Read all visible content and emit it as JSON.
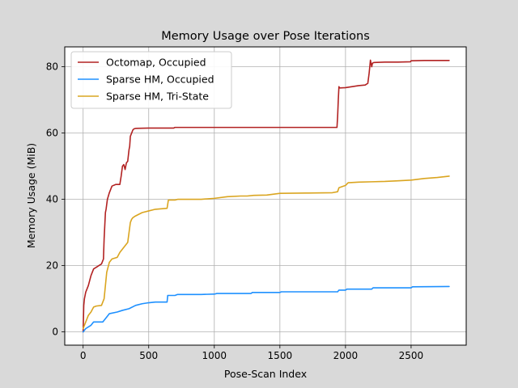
{
  "chart_data": {
    "type": "line",
    "title": "Memory Usage over Pose Iterations",
    "xlabel": "Pose-Scan Index",
    "ylabel": "Memory Usage (MiB)",
    "xlim": [
      -140,
      2920
    ],
    "ylim": [
      -4,
      86
    ],
    "xticks": [
      0,
      500,
      1000,
      1500,
      2000,
      2500
    ],
    "yticks": [
      0,
      20,
      40,
      60,
      80
    ],
    "grid": true,
    "legend": "top-left",
    "series": [
      {
        "name": "Octomap, Occupied",
        "color": "#b22222",
        "x": [
          0,
          5,
          10,
          20,
          40,
          60,
          80,
          100,
          120,
          140,
          155,
          160,
          170,
          175,
          185,
          200,
          220,
          250,
          280,
          290,
          300,
          310,
          320,
          330,
          340,
          350,
          355,
          360,
          370,
          380,
          390,
          400,
          500,
          600,
          690,
          700,
          800,
          1000,
          1200,
          1500,
          1800,
          1935,
          1940,
          1945,
          1950,
          1955,
          2000,
          2050,
          2100,
          2150,
          2170,
          2180,
          2190,
          2200,
          2205,
          2210,
          2220,
          2300,
          2400,
          2495,
          2500,
          2600,
          2700,
          2790
        ],
        "y": [
          0,
          8,
          10,
          12,
          14,
          17,
          19,
          19.5,
          20,
          20.5,
          22,
          28,
          36,
          37,
          40,
          42,
          44,
          44.5,
          44.5,
          47,
          50,
          50.5,
          49,
          51,
          51.5,
          55,
          56,
          59,
          60,
          61,
          61.3,
          61.4,
          61.5,
          61.5,
          61.5,
          61.7,
          61.7,
          61.7,
          61.7,
          61.7,
          61.7,
          61.7,
          65,
          70,
          74,
          73.6,
          73.7,
          74,
          74.3,
          74.5,
          75,
          78,
          82,
          80,
          81,
          81.2,
          81.3,
          81.4,
          81.4,
          81.5,
          81.8,
          81.9,
          81.9,
          81.9
        ]
      },
      {
        "name": "Sparse HM, Occupied",
        "color": "#1e90ff",
        "x": [
          0,
          20,
          60,
          80,
          100,
          150,
          170,
          190,
          200,
          260,
          300,
          350,
          400,
          450,
          500,
          550,
          640,
          645,
          700,
          720,
          900,
          1000,
          1020,
          1280,
          1290,
          1500,
          1510,
          1940,
          1950,
          2000,
          2010,
          2200,
          2210,
          2500,
          2510,
          2790
        ],
        "y": [
          0,
          1,
          2,
          3,
          3,
          3,
          4,
          5,
          5.5,
          6,
          6.5,
          7,
          8,
          8.5,
          8.8,
          9,
          9,
          11,
          11,
          11.3,
          11.3,
          11.4,
          11.6,
          11.6,
          11.9,
          11.9,
          12.1,
          12.1,
          12.6,
          12.6,
          12.9,
          12.9,
          13.3,
          13.3,
          13.6,
          13.7
        ]
      },
      {
        "name": "Sparse HM, Tri-State",
        "color": "#daa520",
        "x": [
          0,
          20,
          40,
          60,
          80,
          100,
          140,
          160,
          170,
          180,
          200,
          220,
          260,
          280,
          300,
          340,
          360,
          370,
          380,
          400,
          450,
          500,
          550,
          640,
          650,
          700,
          720,
          900,
          1000,
          1100,
          1200,
          1250,
          1300,
          1400,
          1500,
          1700,
          1900,
          1940,
          1950,
          2000,
          2020,
          2100,
          2200,
          2300,
          2400,
          2500,
          2600,
          2700,
          2790
        ],
        "y": [
          1,
          3,
          5,
          6,
          7.5,
          7.8,
          8,
          10,
          14,
          18,
          21,
          22,
          22.5,
          24,
          25,
          27,
          33,
          34,
          34.5,
          35,
          36,
          36.5,
          37,
          37.3,
          39.8,
          39.8,
          40,
          40,
          40.3,
          40.8,
          41,
          41,
          41.2,
          41.3,
          41.8,
          41.9,
          42,
          42.3,
          43.5,
          44.2,
          45,
          45.2,
          45.3,
          45.4,
          45.6,
          45.8,
          46.3,
          46.6,
          47
        ]
      }
    ]
  }
}
